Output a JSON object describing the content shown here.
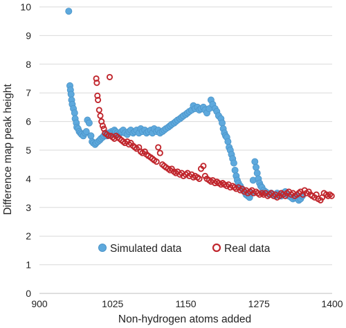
{
  "chart_data": {
    "type": "scatter",
    "xlabel": "Non-hydrogen atoms added",
    "ylabel": "Difference map peak height",
    "xlim": [
      900,
      1400
    ],
    "ylim": [
      0,
      10
    ],
    "x_ticks": [
      "900",
      "1025",
      "1150",
      "1275",
      "1400"
    ],
    "y_ticks": [
      "0",
      "1",
      "2",
      "3",
      "4",
      "5",
      "6",
      "7",
      "8",
      "9",
      "10"
    ],
    "grid": "horizontal",
    "legend_position": "bottom-center",
    "series": [
      {
        "name": "Simulated data",
        "color": "#5ea9dd",
        "marker": "filled-circle",
        "points": [
          [
            950,
            9.85
          ],
          [
            952,
            7.25
          ],
          [
            953,
            7.1
          ],
          [
            954,
            6.95
          ],
          [
            955,
            6.75
          ],
          [
            956,
            6.6
          ],
          [
            958,
            6.45
          ],
          [
            960,
            6.3
          ],
          [
            961,
            6.1
          ],
          [
            963,
            5.95
          ],
          [
            964,
            5.8
          ],
          [
            966,
            5.75
          ],
          [
            968,
            5.65
          ],
          [
            970,
            5.6
          ],
          [
            972,
            5.55
          ],
          [
            975,
            5.5
          ],
          [
            978,
            5.6
          ],
          [
            980,
            5.65
          ],
          [
            982,
            6.05
          ],
          [
            985,
            5.95
          ],
          [
            988,
            5.5
          ],
          [
            990,
            5.3
          ],
          [
            992,
            5.25
          ],
          [
            995,
            5.2
          ],
          [
            997,
            5.25
          ],
          [
            1000,
            5.3
          ],
          [
            1003,
            5.35
          ],
          [
            1005,
            5.4
          ],
          [
            1008,
            5.45
          ],
          [
            1010,
            5.5
          ],
          [
            1013,
            5.55
          ],
          [
            1015,
            5.5
          ],
          [
            1018,
            5.6
          ],
          [
            1020,
            5.55
          ],
          [
            1023,
            5.65
          ],
          [
            1025,
            5.6
          ],
          [
            1028,
            5.7
          ],
          [
            1030,
            5.65
          ],
          [
            1033,
            5.6
          ],
          [
            1036,
            5.55
          ],
          [
            1040,
            5.65
          ],
          [
            1043,
            5.7
          ],
          [
            1046,
            5.6
          ],
          [
            1050,
            5.55
          ],
          [
            1053,
            5.65
          ],
          [
            1056,
            5.7
          ],
          [
            1060,
            5.6
          ],
          [
            1063,
            5.65
          ],
          [
            1066,
            5.7
          ],
          [
            1070,
            5.6
          ],
          [
            1073,
            5.75
          ],
          [
            1076,
            5.65
          ],
          [
            1080,
            5.7
          ],
          [
            1083,
            5.6
          ],
          [
            1086,
            5.65
          ],
          [
            1090,
            5.7
          ],
          [
            1093,
            5.6
          ],
          [
            1096,
            5.75
          ],
          [
            1100,
            5.65
          ],
          [
            1103,
            5.7
          ],
          [
            1106,
            5.6
          ],
          [
            1110,
            5.65
          ],
          [
            1113,
            5.7
          ],
          [
            1116,
            5.75
          ],
          [
            1120,
            5.8
          ],
          [
            1123,
            5.85
          ],
          [
            1126,
            5.9
          ],
          [
            1130,
            5.95
          ],
          [
            1133,
            6.0
          ],
          [
            1136,
            6.05
          ],
          [
            1140,
            6.1
          ],
          [
            1143,
            6.15
          ],
          [
            1146,
            6.2
          ],
          [
            1150,
            6.25
          ],
          [
            1153,
            6.3
          ],
          [
            1156,
            6.35
          ],
          [
            1160,
            6.4
          ],
          [
            1163,
            6.55
          ],
          [
            1166,
            6.45
          ],
          [
            1170,
            6.5
          ],
          [
            1173,
            6.4
          ],
          [
            1176,
            6.45
          ],
          [
            1180,
            6.5
          ],
          [
            1183,
            6.4
          ],
          [
            1186,
            6.3
          ],
          [
            1190,
            6.45
          ],
          [
            1193,
            6.75
          ],
          [
            1196,
            6.6
          ],
          [
            1200,
            6.45
          ],
          [
            1203,
            6.35
          ],
          [
            1206,
            6.2
          ],
          [
            1210,
            6.1
          ],
          [
            1212,
            5.95
          ],
          [
            1214,
            5.75
          ],
          [
            1216,
            5.6
          ],
          [
            1218,
            5.5
          ],
          [
            1220,
            5.45
          ],
          [
            1222,
            5.3
          ],
          [
            1224,
            5.1
          ],
          [
            1226,
            5.0
          ],
          [
            1228,
            4.85
          ],
          [
            1230,
            4.7
          ],
          [
            1232,
            4.55
          ],
          [
            1234,
            4.3
          ],
          [
            1236,
            4.1
          ],
          [
            1238,
            3.95
          ],
          [
            1240,
            3.85
          ],
          [
            1243,
            3.75
          ],
          [
            1246,
            3.65
          ],
          [
            1250,
            3.55
          ],
          [
            1253,
            3.45
          ],
          [
            1256,
            3.4
          ],
          [
            1259,
            3.35
          ],
          [
            1262,
            3.5
          ],
          [
            1265,
            3.95
          ],
          [
            1268,
            4.6
          ],
          [
            1270,
            4.4
          ],
          [
            1272,
            4.2
          ],
          [
            1274,
            4.0
          ],
          [
            1276,
            3.85
          ],
          [
            1278,
            3.75
          ],
          [
            1280,
            3.7
          ],
          [
            1283,
            3.6
          ],
          [
            1286,
            3.55
          ],
          [
            1290,
            3.5
          ],
          [
            1293,
            3.45
          ],
          [
            1296,
            3.5
          ],
          [
            1300,
            3.45
          ],
          [
            1303,
            3.4
          ],
          [
            1306,
            3.5
          ],
          [
            1310,
            3.45
          ],
          [
            1313,
            3.4
          ],
          [
            1316,
            3.5
          ],
          [
            1320,
            3.55
          ],
          [
            1323,
            3.45
          ],
          [
            1326,
            3.4
          ],
          [
            1330,
            3.35
          ],
          [
            1333,
            3.3
          ],
          [
            1336,
            3.35
          ],
          [
            1340,
            3.4
          ],
          [
            1343,
            3.25
          ],
          [
            1346,
            3.3
          ],
          [
            1349,
            3.4
          ]
        ]
      },
      {
        "name": "Real data",
        "color": "#c0262d",
        "marker": "open-circle",
        "points": [
          [
            997,
            7.5
          ],
          [
            998,
            7.35
          ],
          [
            999,
            6.9
          ],
          [
            1000,
            6.75
          ],
          [
            1002,
            6.4
          ],
          [
            1004,
            6.2
          ],
          [
            1006,
            6.0
          ],
          [
            1008,
            5.85
          ],
          [
            1010,
            5.75
          ],
          [
            1012,
            5.6
          ],
          [
            1015,
            5.55
          ],
          [
            1018,
            5.5
          ],
          [
            1020,
            7.55
          ],
          [
            1022,
            5.5
          ],
          [
            1025,
            5.45
          ],
          [
            1028,
            5.4
          ],
          [
            1031,
            5.5
          ],
          [
            1034,
            5.45
          ],
          [
            1037,
            5.4
          ],
          [
            1040,
            5.35
          ],
          [
            1043,
            5.3
          ],
          [
            1046,
            5.25
          ],
          [
            1050,
            5.3
          ],
          [
            1053,
            5.2
          ],
          [
            1056,
            5.25
          ],
          [
            1060,
            5.15
          ],
          [
            1063,
            5.1
          ],
          [
            1066,
            5.05
          ],
          [
            1070,
            5.1
          ],
          [
            1073,
            4.95
          ],
          [
            1076,
            4.9
          ],
          [
            1080,
            4.95
          ],
          [
            1083,
            4.85
          ],
          [
            1086,
            4.8
          ],
          [
            1090,
            4.75
          ],
          [
            1093,
            4.7
          ],
          [
            1096,
            4.65
          ],
          [
            1100,
            4.6
          ],
          [
            1103,
            5.1
          ],
          [
            1106,
            4.9
          ],
          [
            1110,
            4.5
          ],
          [
            1113,
            4.45
          ],
          [
            1116,
            4.4
          ],
          [
            1120,
            4.35
          ],
          [
            1123,
            4.3
          ],
          [
            1126,
            4.35
          ],
          [
            1130,
            4.25
          ],
          [
            1133,
            4.2
          ],
          [
            1136,
            4.25
          ],
          [
            1140,
            4.15
          ],
          [
            1143,
            4.2
          ],
          [
            1146,
            4.1
          ],
          [
            1150,
            4.15
          ],
          [
            1153,
            4.2
          ],
          [
            1156,
            4.1
          ],
          [
            1160,
            4.15
          ],
          [
            1163,
            4.05
          ],
          [
            1166,
            4.1
          ],
          [
            1170,
            4.05
          ],
          [
            1173,
            4.0
          ],
          [
            1176,
            4.35
          ],
          [
            1180,
            4.45
          ],
          [
            1183,
            4.1
          ],
          [
            1186,
            4.0
          ],
          [
            1190,
            3.95
          ],
          [
            1193,
            3.9
          ],
          [
            1196,
            3.95
          ],
          [
            1200,
            3.85
          ],
          [
            1203,
            3.9
          ],
          [
            1206,
            3.85
          ],
          [
            1210,
            3.8
          ],
          [
            1213,
            3.85
          ],
          [
            1216,
            3.8
          ],
          [
            1220,
            3.75
          ],
          [
            1223,
            3.8
          ],
          [
            1226,
            3.7
          ],
          [
            1230,
            3.75
          ],
          [
            1233,
            3.7
          ],
          [
            1236,
            3.65
          ],
          [
            1240,
            3.7
          ],
          [
            1243,
            3.6
          ],
          [
            1246,
            3.65
          ],
          [
            1250,
            3.55
          ],
          [
            1253,
            3.6
          ],
          [
            1256,
            3.5
          ],
          [
            1260,
            3.55
          ],
          [
            1263,
            3.6
          ],
          [
            1266,
            3.5
          ],
          [
            1270,
            3.55
          ],
          [
            1273,
            3.5
          ],
          [
            1276,
            3.45
          ],
          [
            1280,
            3.5
          ],
          [
            1283,
            3.45
          ],
          [
            1286,
            3.5
          ],
          [
            1290,
            3.4
          ],
          [
            1293,
            3.45
          ],
          [
            1296,
            3.5
          ],
          [
            1300,
            3.4
          ],
          [
            1303,
            3.45
          ],
          [
            1306,
            3.35
          ],
          [
            1310,
            3.4
          ],
          [
            1313,
            3.5
          ],
          [
            1316,
            3.45
          ],
          [
            1320,
            3.4
          ],
          [
            1323,
            3.5
          ],
          [
            1326,
            3.55
          ],
          [
            1330,
            3.45
          ],
          [
            1333,
            3.5
          ],
          [
            1336,
            3.4
          ],
          [
            1340,
            3.45
          ],
          [
            1343,
            3.5
          ],
          [
            1346,
            3.55
          ],
          [
            1350,
            3.45
          ],
          [
            1353,
            3.6
          ],
          [
            1356,
            3.5
          ],
          [
            1360,
            3.55
          ],
          [
            1363,
            3.45
          ],
          [
            1366,
            3.4
          ],
          [
            1370,
            3.35
          ],
          [
            1373,
            3.45
          ],
          [
            1376,
            3.3
          ],
          [
            1380,
            3.25
          ],
          [
            1383,
            3.35
          ],
          [
            1386,
            3.5
          ],
          [
            1390,
            3.45
          ],
          [
            1393,
            3.4
          ],
          [
            1396,
            3.45
          ],
          [
            1399,
            3.4
          ]
        ]
      }
    ]
  }
}
